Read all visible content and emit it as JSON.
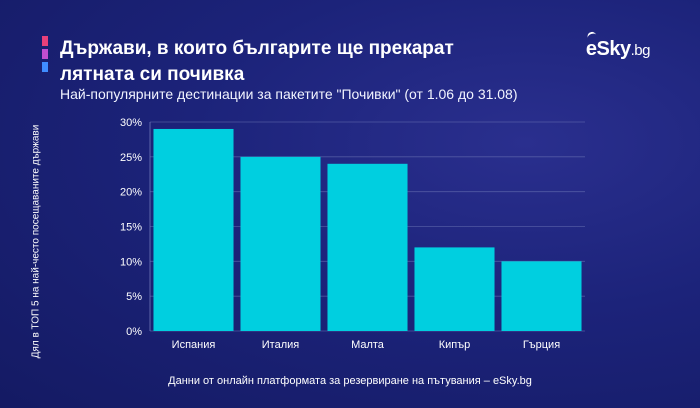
{
  "header": {
    "title": "Държави, в които българите ще прекарат лятната си почивка",
    "subtitle": "Най-популярните дестинации за пакетите \"Почивки\" (от 1.06 до 31.08)",
    "logo_main": "eSky",
    "logo_tld": ".bg"
  },
  "footer": {
    "source": "Данни от онлайн платформата за резервиране на пътувания – eSky.bg"
  },
  "colors": {
    "bar": "#00cfe0",
    "grid": "#7078b8",
    "background": "#1c237a",
    "accent": [
      "#e8407a",
      "#c04ed0",
      "#3f8cff"
    ]
  },
  "chart_data": {
    "type": "bar",
    "title": "Държави, в които българите ще прекарат лятната си почивка",
    "subtitle": "Най-популярните дестинации за пакетите \"Почивки\" (от 1.06 до 31.08)",
    "xlabel": "",
    "ylabel": "Дял в ТОП 5 на най-често посещаваните държави",
    "categories": [
      "Испания",
      "Италия",
      "Малта",
      "Кипър",
      "Гърция"
    ],
    "values": [
      29,
      25,
      24,
      12,
      10
    ],
    "unit": "%",
    "ylim": [
      0,
      30
    ],
    "yticks": [
      "30%",
      "25%",
      "20%",
      "15%",
      "10%",
      "5%",
      "0%"
    ],
    "grid": true,
    "legend": "none"
  }
}
